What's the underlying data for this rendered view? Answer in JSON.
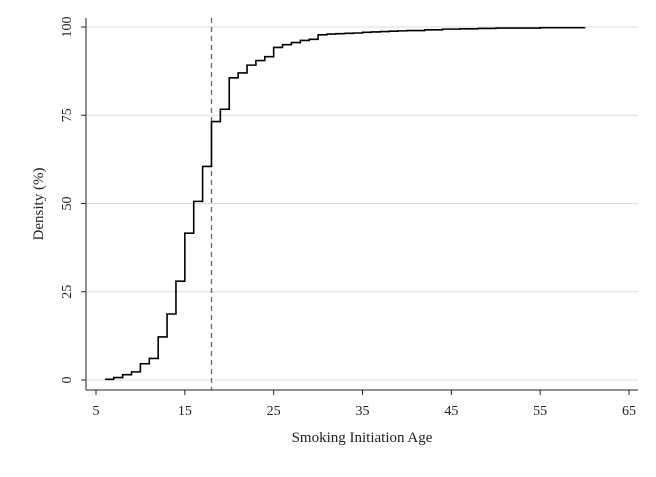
{
  "colors": {
    "line": "#000000",
    "grid": "#dddddd",
    "axis": "#222222",
    "ref": "#666666"
  },
  "chart_data": {
    "type": "line",
    "step": true,
    "title": "",
    "xlabel": "Smoking Initiation Age",
    "ylabel": "Density (%)",
    "xlim": [
      5,
      65
    ],
    "ylim": [
      0,
      100
    ],
    "xticks": [
      5,
      15,
      25,
      35,
      45,
      55,
      65
    ],
    "yticks": [
      0,
      25,
      50,
      75,
      100
    ],
    "grid": "horizontal",
    "reference_line_x": 18,
    "series": [
      {
        "x": [
          6,
          7,
          8,
          9,
          10,
          11,
          12,
          13,
          14,
          15,
          16,
          17,
          18,
          19,
          20,
          21,
          22,
          23,
          24,
          25,
          26,
          27,
          28,
          29,
          30,
          31,
          32,
          33,
          34,
          35,
          36,
          37,
          38,
          39,
          40,
          42,
          44,
          46,
          48,
          50,
          55,
          60
        ],
        "y": [
          0.2,
          0.7,
          1.5,
          2.3,
          4.6,
          6.1,
          12.2,
          18.7,
          28,
          41.6,
          50.6,
          60.5,
          73.2,
          76.7,
          85.6,
          87,
          89.2,
          90.5,
          91.6,
          94.2,
          95,
          95.6,
          96.2,
          96.5,
          97.8,
          98,
          98.1,
          98.2,
          98.3,
          98.5,
          98.6,
          98.7,
          98.8,
          98.9,
          99,
          99.2,
          99.4,
          99.5,
          99.6,
          99.7,
          99.8,
          99.9
        ]
      }
    ]
  }
}
